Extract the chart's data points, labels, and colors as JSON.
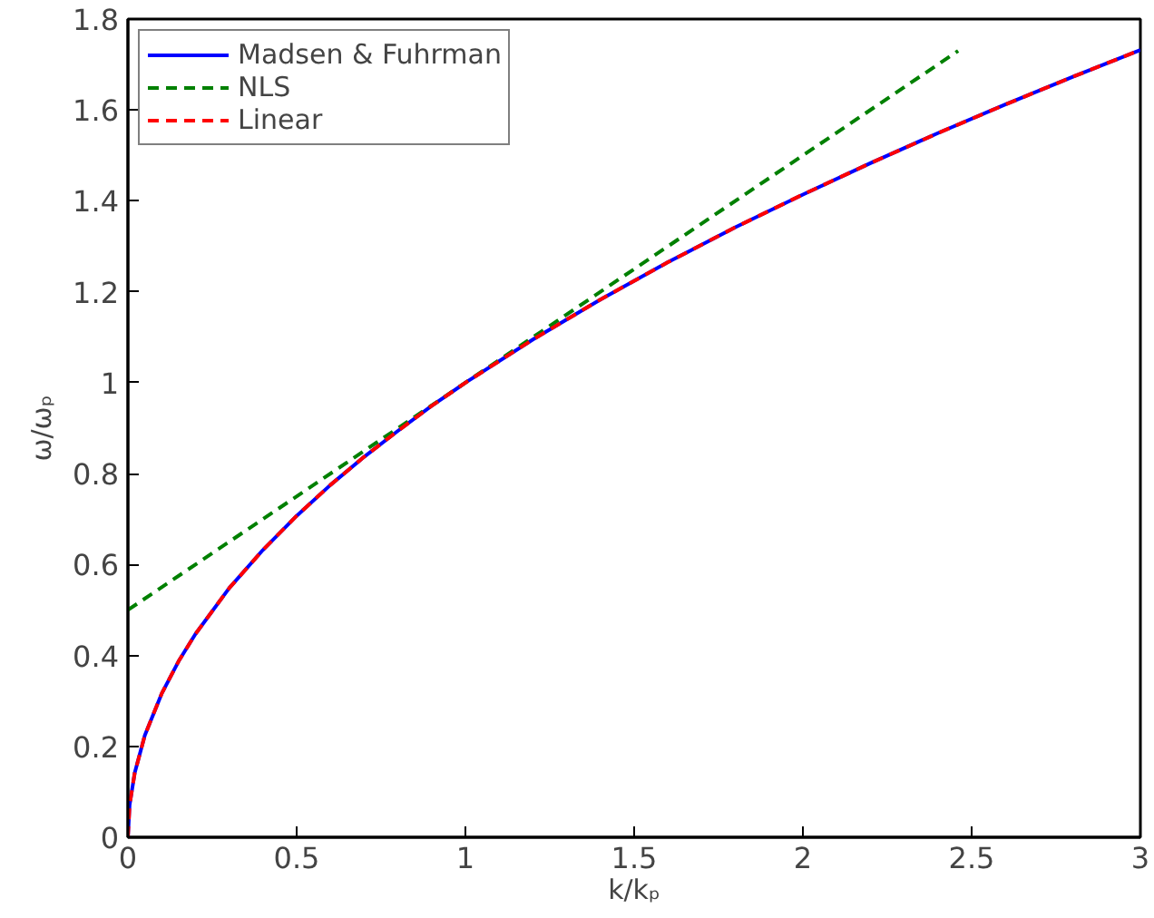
{
  "chart_data": {
    "type": "line",
    "xlabel": "k/kₚ",
    "ylabel": "ω/ωₚ",
    "x": [
      0,
      0.005,
      0.02,
      0.05,
      0.1,
      0.15,
      0.2,
      0.3,
      0.4,
      0.5,
      0.6,
      0.7,
      0.8,
      0.9,
      1,
      1.2,
      1.4,
      1.6,
      1.8,
      2,
      2.2,
      2.4,
      2.6,
      2.8,
      3
    ],
    "series": [
      {
        "name": "Madsen & Fuhrman",
        "color": "#0000ff",
        "line_style": "solid",
        "values": [
          0,
          0.071,
          0.141,
          0.224,
          0.316,
          0.387,
          0.447,
          0.548,
          0.632,
          0.707,
          0.775,
          0.837,
          0.894,
          0.949,
          1,
          1.095,
          1.183,
          1.265,
          1.342,
          1.414,
          1.483,
          1.549,
          1.612,
          1.673,
          1.732
        ]
      },
      {
        "name": "NLS",
        "color": "#008000",
        "line_style": "dashed",
        "x": [
          0,
          2.46
        ],
        "values": [
          0.5,
          1.73
        ]
      },
      {
        "name": "Linear",
        "color": "#ff0000",
        "line_style": "dashed",
        "values": [
          0,
          0.071,
          0.141,
          0.224,
          0.316,
          0.387,
          0.447,
          0.548,
          0.632,
          0.707,
          0.775,
          0.837,
          0.894,
          0.949,
          1,
          1.095,
          1.183,
          1.265,
          1.342,
          1.414,
          1.483,
          1.549,
          1.612,
          1.673,
          1.732
        ]
      }
    ],
    "xlim": [
      0,
      3
    ],
    "ylim": [
      0,
      1.8
    ],
    "xticks": [
      0,
      0.5,
      1,
      1.5,
      2,
      2.5,
      3
    ],
    "yticks": [
      0,
      0.2,
      0.4,
      0.6,
      0.8,
      1,
      1.2,
      1.4,
      1.6,
      1.8
    ],
    "grid": false,
    "legend": "top left",
    "marker": "none"
  }
}
